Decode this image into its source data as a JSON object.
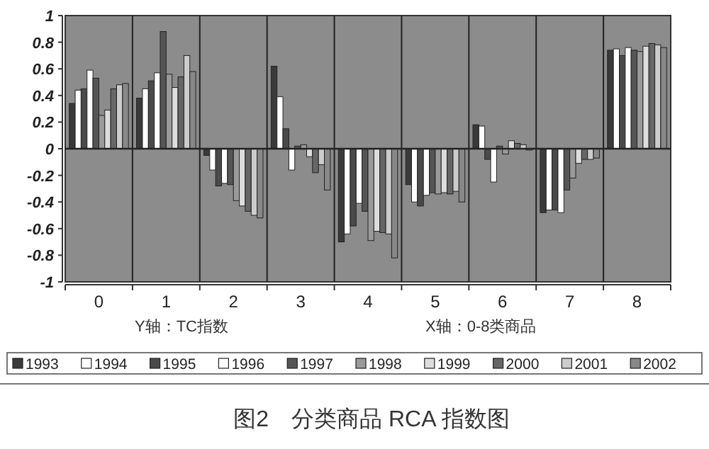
{
  "chart_data": {
    "type": "bar",
    "title": "图2　分类商品 RCA 指数图",
    "annotations": [
      "Y轴：TC指数",
      "X轴：0-8类商品"
    ],
    "categories": [
      "0",
      "1",
      "2",
      "3",
      "4",
      "5",
      "6",
      "7",
      "8"
    ],
    "ylim": [
      -1,
      1
    ],
    "yticks": [
      1,
      0.8,
      0.6,
      0.4,
      0.2,
      0,
      -0.2,
      -0.4,
      -0.6,
      -0.8,
      -1
    ],
    "grid": "x",
    "legend": "bottom",
    "series": [
      {
        "name": "1993",
        "color": "#3a3a3a",
        "values": [
          0.34,
          0.38,
          -0.05,
          0.62,
          -0.7,
          -0.27,
          0.18,
          -0.48,
          0.74
        ]
      },
      {
        "name": "1994",
        "color": "#ffffff",
        "values": [
          0.44,
          0.45,
          -0.16,
          0.39,
          -0.64,
          -0.4,
          0.17,
          -0.46,
          0.75
        ]
      },
      {
        "name": "1995",
        "color": "#4a4a4a",
        "values": [
          0.45,
          0.51,
          -0.28,
          0.15,
          -0.58,
          -0.43,
          -0.08,
          -0.46,
          0.7
        ]
      },
      {
        "name": "1996",
        "color": "#ffffff",
        "values": [
          0.59,
          0.57,
          -0.26,
          -0.16,
          -0.41,
          -0.35,
          -0.25,
          -0.48,
          0.76
        ]
      },
      {
        "name": "1997",
        "color": "#555555",
        "values": [
          0.53,
          0.88,
          -0.27,
          0.02,
          -0.47,
          -0.33,
          0.02,
          -0.31,
          0.74
        ]
      },
      {
        "name": "1998",
        "color": "#9a9a9a",
        "values": [
          0.25,
          0.56,
          -0.39,
          0.03,
          -0.69,
          -0.34,
          -0.04,
          -0.22,
          0.73
        ]
      },
      {
        "name": "1999",
        "color": "#dddddd",
        "values": [
          0.29,
          0.46,
          -0.43,
          -0.06,
          -0.62,
          -0.33,
          0.06,
          -0.11,
          0.77
        ]
      },
      {
        "name": "2000",
        "color": "#666666",
        "values": [
          0.45,
          0.54,
          -0.47,
          -0.18,
          -0.63,
          -0.34,
          0.04,
          -0.08,
          0.79
        ]
      },
      {
        "name": "2001",
        "color": "#cccccc",
        "values": [
          0.48,
          0.7,
          -0.5,
          -0.12,
          -0.64,
          -0.32,
          0.03,
          -0.08,
          0.78
        ]
      },
      {
        "name": "2002",
        "color": "#888888",
        "values": [
          0.49,
          0.58,
          -0.52,
          -0.31,
          -0.82,
          -0.4,
          -0.01,
          -0.07,
          0.76
        ]
      }
    ]
  }
}
